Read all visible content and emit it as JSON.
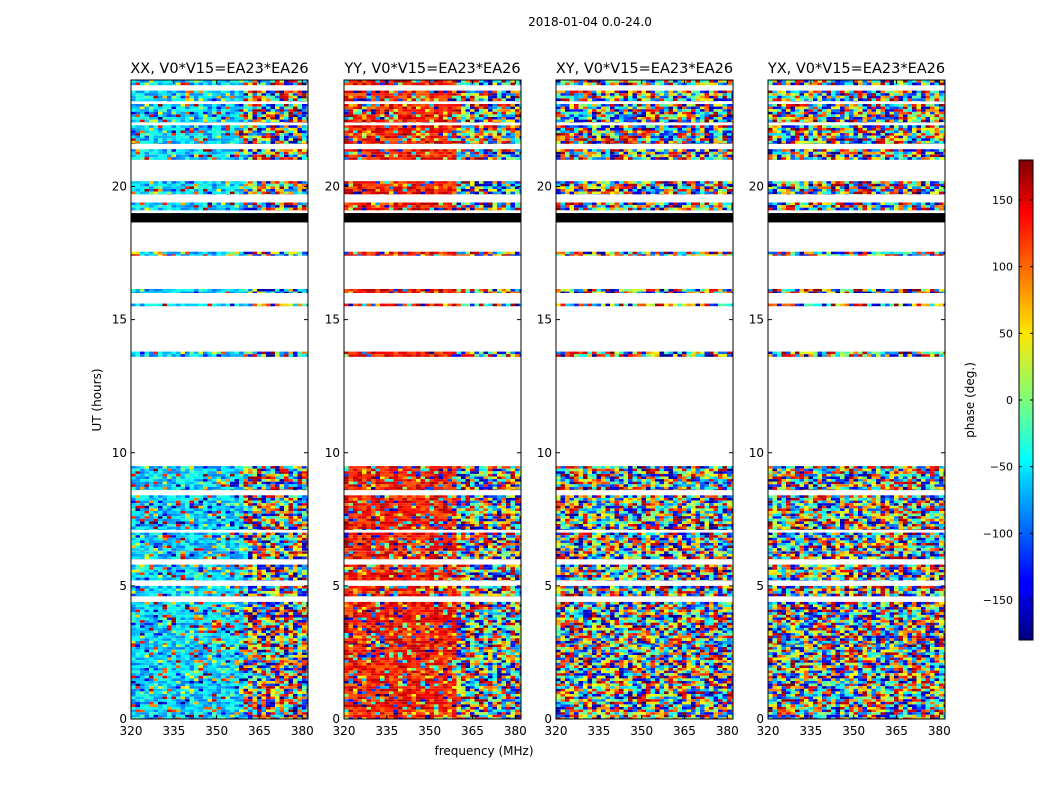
{
  "figure": {
    "suptitle": "2018-01-04 0.0-24.0",
    "xlabel": "frequency (MHz)",
    "ylabel": "UT (hours)"
  },
  "chart_data": {
    "type": "heatmap",
    "title": "2018-01-04 0.0-24.0",
    "xlabel": "frequency (MHz)",
    "ylabel": "UT (hours)",
    "xlim": [
      320,
      382
    ],
    "ylim": [
      0,
      24
    ],
    "xticks": [
      320,
      335,
      350,
      365,
      380
    ],
    "yticks": [
      0,
      5,
      10,
      15,
      20
    ],
    "panels": [
      {
        "title": "XX, V0*V15=EA23*EA26",
        "name": "XX",
        "base_phase": -60
      },
      {
        "title": "YY, V0*V15=EA23*EA26",
        "name": "YY",
        "base_phase": 130
      },
      {
        "title": "XY, V0*V15=EA23*EA26",
        "name": "XY",
        "base_phase": null
      },
      {
        "title": "YX, V0*V15=EA23*EA26",
        "name": "YX",
        "base_phase": null
      }
    ],
    "data_bands_ut": [
      [
        0.0,
        2.5
      ],
      [
        2.5,
        2.8
      ],
      [
        2.8,
        4.4
      ],
      [
        4.6,
        5.0
      ],
      [
        5.2,
        5.8
      ],
      [
        6.0,
        6.3
      ],
      [
        6.3,
        7.0
      ],
      [
        7.1,
        8.4
      ],
      [
        8.6,
        9.5
      ],
      [
        13.6,
        13.8
      ],
      [
        15.5,
        15.6
      ],
      [
        16.0,
        16.15
      ],
      [
        17.4,
        17.55
      ],
      [
        18.7,
        19.0
      ],
      [
        19.1,
        19.4
      ],
      [
        19.7,
        20.2
      ],
      [
        21.0,
        21.2
      ],
      [
        21.2,
        21.4
      ],
      [
        21.6,
        22.3
      ],
      [
        22.4,
        23.1
      ],
      [
        23.2,
        23.6
      ],
      [
        23.8,
        24.0
      ]
    ],
    "black_band_ut": [
      18.65,
      19.0
    ],
    "colorbar": {
      "label": "phase (deg.)",
      "range": [
        -180,
        180
      ],
      "ticks": [
        150,
        100,
        50,
        0,
        -50,
        -100,
        -150
      ],
      "tick_labels": [
        "150",
        "100",
        "50",
        "0",
        "−50",
        "−100",
        "−150"
      ],
      "colormap": "jet"
    }
  }
}
